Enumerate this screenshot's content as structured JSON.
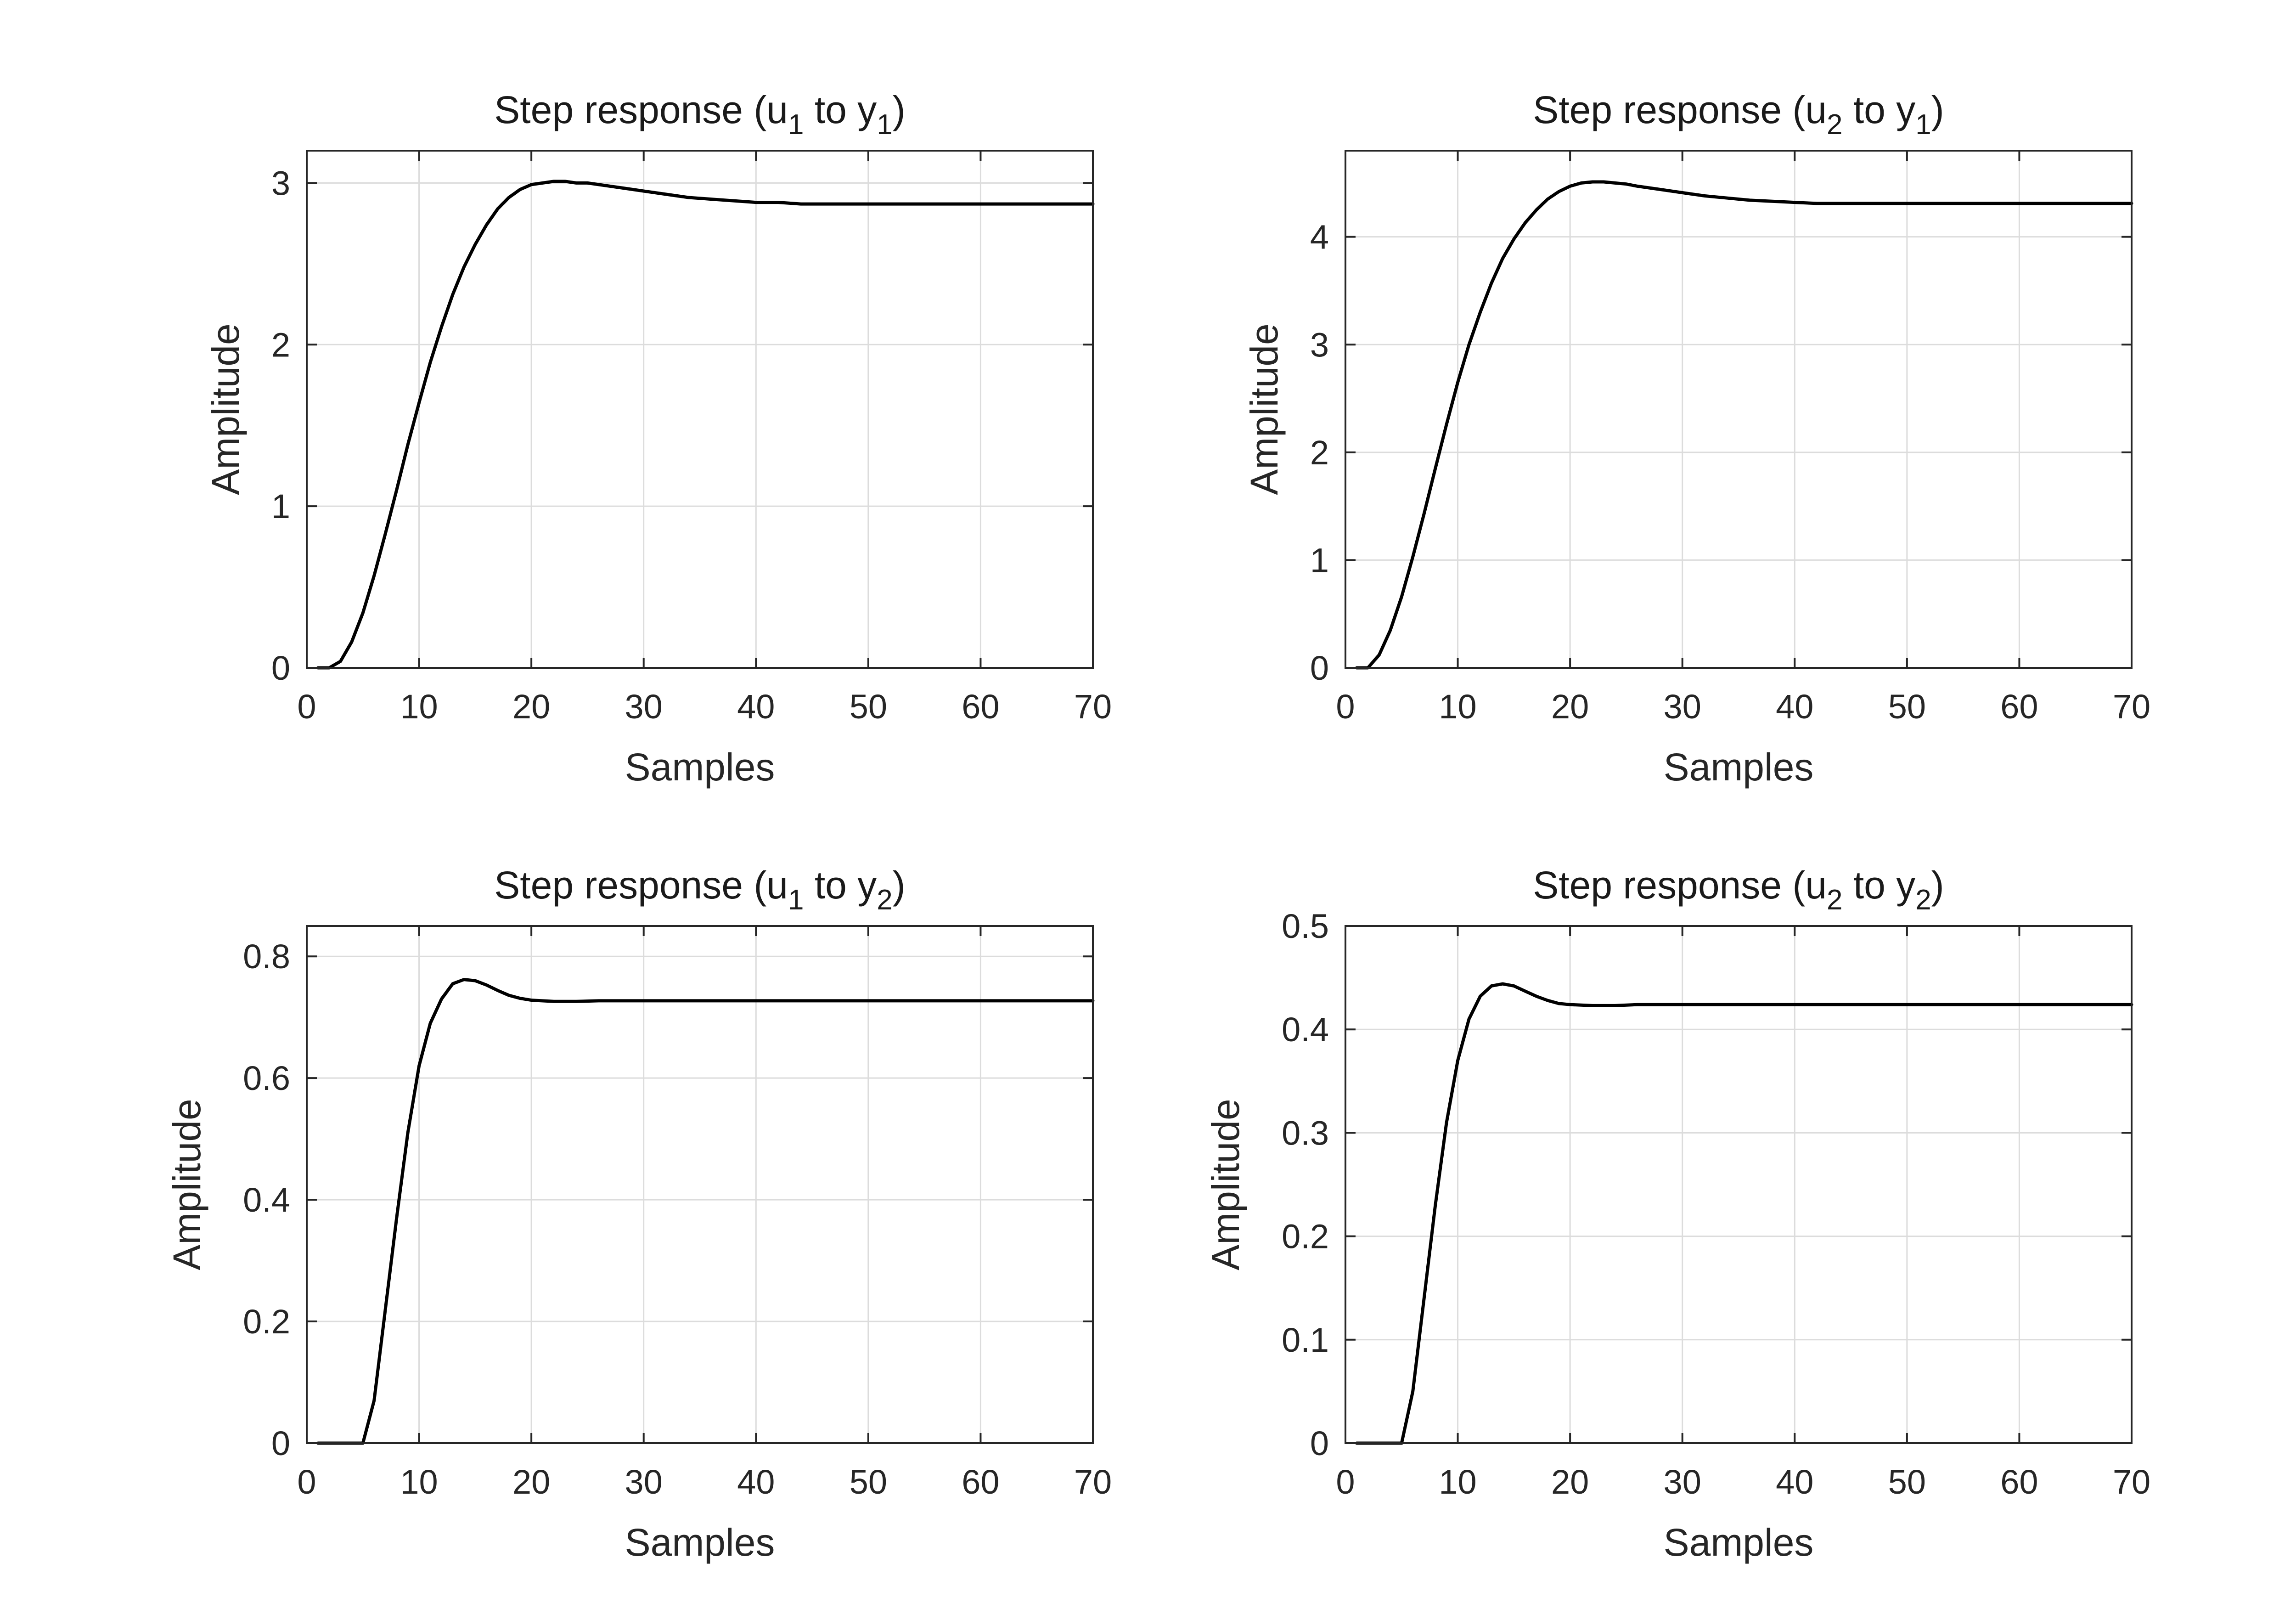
{
  "chart_data": [
    {
      "type": "line",
      "title": {
        "prefix": "Step response (u",
        "in_sub": "1",
        "mid": " to y",
        "out_sub": "1",
        "suffix": ")"
      },
      "xlabel": "Samples",
      "ylabel": "Amplitude",
      "xlim": [
        0,
        70
      ],
      "ylim": [
        0,
        3.2
      ],
      "xticks": [
        0,
        10,
        20,
        30,
        40,
        50,
        60,
        70
      ],
      "yticks": [
        0,
        1,
        2,
        3
      ],
      "yticklabels": [
        "0",
        "1",
        "2",
        "3"
      ],
      "grid": true,
      "series": [
        {
          "x": [
            1,
            2,
            3,
            4,
            5,
            6,
            7,
            8,
            9,
            10,
            11,
            12,
            13,
            14,
            15,
            16,
            17,
            18,
            19,
            20,
            21,
            22,
            23,
            24,
            25,
            26,
            28,
            30,
            32,
            34,
            36,
            38,
            40,
            42,
            44,
            46,
            48,
            50,
            55,
            60,
            65,
            70
          ],
          "values": [
            0,
            0,
            0.04,
            0.16,
            0.34,
            0.57,
            0.83,
            1.1,
            1.38,
            1.64,
            1.89,
            2.11,
            2.31,
            2.48,
            2.62,
            2.74,
            2.84,
            2.91,
            2.96,
            2.99,
            3.0,
            3.01,
            3.01,
            3.0,
            3.0,
            2.99,
            2.97,
            2.95,
            2.93,
            2.91,
            2.9,
            2.89,
            2.88,
            2.88,
            2.87,
            2.87,
            2.87,
            2.87,
            2.87,
            2.87,
            2.87,
            2.87
          ]
        }
      ]
    },
    {
      "type": "line",
      "title": {
        "prefix": "Step response (u",
        "in_sub": "2",
        "mid": " to y",
        "out_sub": "1",
        "suffix": ")"
      },
      "xlabel": "Samples",
      "ylabel": "Amplitude",
      "xlim": [
        0,
        70
      ],
      "ylim": [
        0,
        4.8
      ],
      "xticks": [
        0,
        10,
        20,
        30,
        40,
        50,
        60,
        70
      ],
      "yticks": [
        0,
        1,
        2,
        3,
        4
      ],
      "yticklabels": [
        "0",
        "1",
        "2",
        "3",
        "4"
      ],
      "grid": true,
      "series": [
        {
          "x": [
            1,
            2,
            3,
            4,
            5,
            6,
            7,
            8,
            9,
            10,
            11,
            12,
            13,
            14,
            15,
            16,
            17,
            18,
            19,
            20,
            21,
            22,
            23,
            24,
            25,
            26,
            28,
            30,
            32,
            34,
            36,
            38,
            40,
            42,
            44,
            46,
            48,
            50,
            55,
            60,
            65,
            70
          ],
          "values": [
            0,
            0,
            0.12,
            0.35,
            0.66,
            1.03,
            1.43,
            1.85,
            2.26,
            2.65,
            3.0,
            3.3,
            3.57,
            3.8,
            3.98,
            4.13,
            4.25,
            4.35,
            4.42,
            4.47,
            4.5,
            4.51,
            4.51,
            4.5,
            4.49,
            4.47,
            4.44,
            4.41,
            4.38,
            4.36,
            4.34,
            4.33,
            4.32,
            4.31,
            4.31,
            4.31,
            4.31,
            4.31,
            4.31,
            4.31,
            4.31,
            4.31
          ]
        }
      ]
    },
    {
      "type": "line",
      "title": {
        "prefix": "Step response (u",
        "in_sub": "1",
        "mid": " to y",
        "out_sub": "2",
        "suffix": ")"
      },
      "xlabel": "Samples",
      "ylabel": "Amplitude",
      "xlim": [
        0,
        70
      ],
      "ylim": [
        0,
        0.85
      ],
      "xticks": [
        0,
        10,
        20,
        30,
        40,
        50,
        60,
        70
      ],
      "yticks": [
        0,
        0.2,
        0.4,
        0.6,
        0.8
      ],
      "yticklabels": [
        "0",
        "0.2",
        "0.4",
        "0.6",
        "0.8"
      ],
      "grid": true,
      "series": [
        {
          "x": [
            1,
            2,
            3,
            4,
            5,
            6,
            7,
            8,
            9,
            10,
            11,
            12,
            13,
            14,
            15,
            16,
            17,
            18,
            19,
            20,
            22,
            24,
            26,
            28,
            30,
            35,
            40,
            50,
            60,
            70
          ],
          "values": [
            0,
            0,
            0,
            0,
            0,
            0.07,
            0.22,
            0.37,
            0.51,
            0.62,
            0.69,
            0.73,
            0.755,
            0.762,
            0.76,
            0.753,
            0.744,
            0.736,
            0.731,
            0.728,
            0.726,
            0.726,
            0.727,
            0.727,
            0.727,
            0.727,
            0.727,
            0.727,
            0.727,
            0.727
          ]
        }
      ]
    },
    {
      "type": "line",
      "title": {
        "prefix": "Step response (u",
        "in_sub": "2",
        "mid": " to y",
        "out_sub": "2",
        "suffix": ")"
      },
      "xlabel": "Samples",
      "ylabel": "Amplitude",
      "xlim": [
        0,
        70
      ],
      "ylim": [
        0,
        0.5
      ],
      "xticks": [
        0,
        10,
        20,
        30,
        40,
        50,
        60,
        70
      ],
      "yticks": [
        0,
        0.1,
        0.2,
        0.3,
        0.4,
        0.5
      ],
      "yticklabels": [
        "0",
        "0.1",
        "0.2",
        "0.3",
        "0.4",
        "0.5"
      ],
      "grid": true,
      "series": [
        {
          "x": [
            1,
            2,
            3,
            4,
            5,
            6,
            7,
            8,
            9,
            10,
            11,
            12,
            13,
            14,
            15,
            16,
            17,
            18,
            19,
            20,
            22,
            24,
            26,
            28,
            30,
            35,
            40,
            50,
            60,
            70
          ],
          "values": [
            0,
            0,
            0,
            0,
            0,
            0.05,
            0.14,
            0.23,
            0.31,
            0.37,
            0.41,
            0.432,
            0.442,
            0.444,
            0.442,
            0.437,
            0.432,
            0.428,
            0.425,
            0.424,
            0.423,
            0.423,
            0.424,
            0.424,
            0.424,
            0.424,
            0.424,
            0.424,
            0.424,
            0.424
          ]
        }
      ]
    }
  ]
}
